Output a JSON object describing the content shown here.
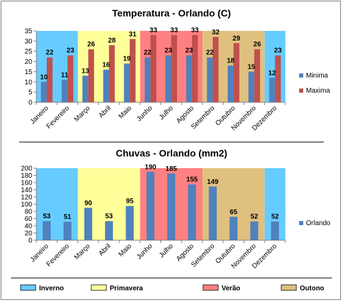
{
  "colors": {
    "inverno": "#66CCFF",
    "primavera": "#FFFF99",
    "verao": "#FF8080",
    "outono": "#E0C07F",
    "minima": "#4F81BD",
    "maxima": "#C0504D",
    "orlando": "#4F81BD"
  },
  "seasons": [
    {
      "name": "Inverno",
      "color_key": "inverno"
    },
    {
      "name": "Primavera",
      "color_key": "primavera"
    },
    {
      "name": "Verão",
      "color_key": "verao"
    },
    {
      "name": "Outono",
      "color_key": "outono"
    }
  ],
  "season_bands": [
    {
      "color_key": "inverno",
      "from": 0,
      "to": 2
    },
    {
      "color_key": "primavera",
      "from": 2,
      "to": 5
    },
    {
      "color_key": "verao",
      "from": 5,
      "to": 8
    },
    {
      "color_key": "outono",
      "from": 8,
      "to": 11
    },
    {
      "color_key": "inverno",
      "from": 11,
      "to": 12
    }
  ],
  "chart_data": [
    {
      "type": "bar",
      "title": "Temperatura - Orlando (C)",
      "categories": [
        "Janeiro",
        "Fevereiro",
        "Março",
        "Abril",
        "Maio",
        "Junho",
        "Julho",
        "Agosto",
        "Setembro",
        "Outubro",
        "Novembro",
        "Dezembro"
      ],
      "series": [
        {
          "name": "Minima",
          "color_key": "minima",
          "values": [
            10,
            11,
            13,
            16,
            19,
            22,
            23,
            23,
            22,
            18,
            15,
            12
          ]
        },
        {
          "name": "Maxima",
          "color_key": "maxima",
          "values": [
            22,
            23,
            26,
            28,
            31,
            33,
            33,
            33,
            32,
            29,
            26,
            23
          ]
        }
      ],
      "ylim": [
        0,
        35
      ],
      "yticks": [
        0,
        5,
        10,
        15,
        20,
        25,
        30,
        35
      ],
      "legend": "right",
      "grid": false
    },
    {
      "type": "bar",
      "title": "Chuvas - Orlando (mm2)",
      "categories": [
        "Janeiro",
        "Fevereiro",
        "Março",
        "Abril",
        "Maio",
        "Junho",
        "Julho",
        "Agosto",
        "Setembro",
        "Outubro",
        "Novembro",
        "Dezembro"
      ],
      "series": [
        {
          "name": "Orlando",
          "color_key": "orlando",
          "values": [
            53,
            51,
            90,
            53,
            95,
            190,
            185,
            155,
            149,
            65,
            52,
            52
          ]
        }
      ],
      "ylim": [
        0,
        200
      ],
      "yticks": [
        0,
        20,
        40,
        60,
        80,
        100,
        120,
        140,
        160,
        180,
        200
      ],
      "legend": "right",
      "grid": false
    }
  ]
}
